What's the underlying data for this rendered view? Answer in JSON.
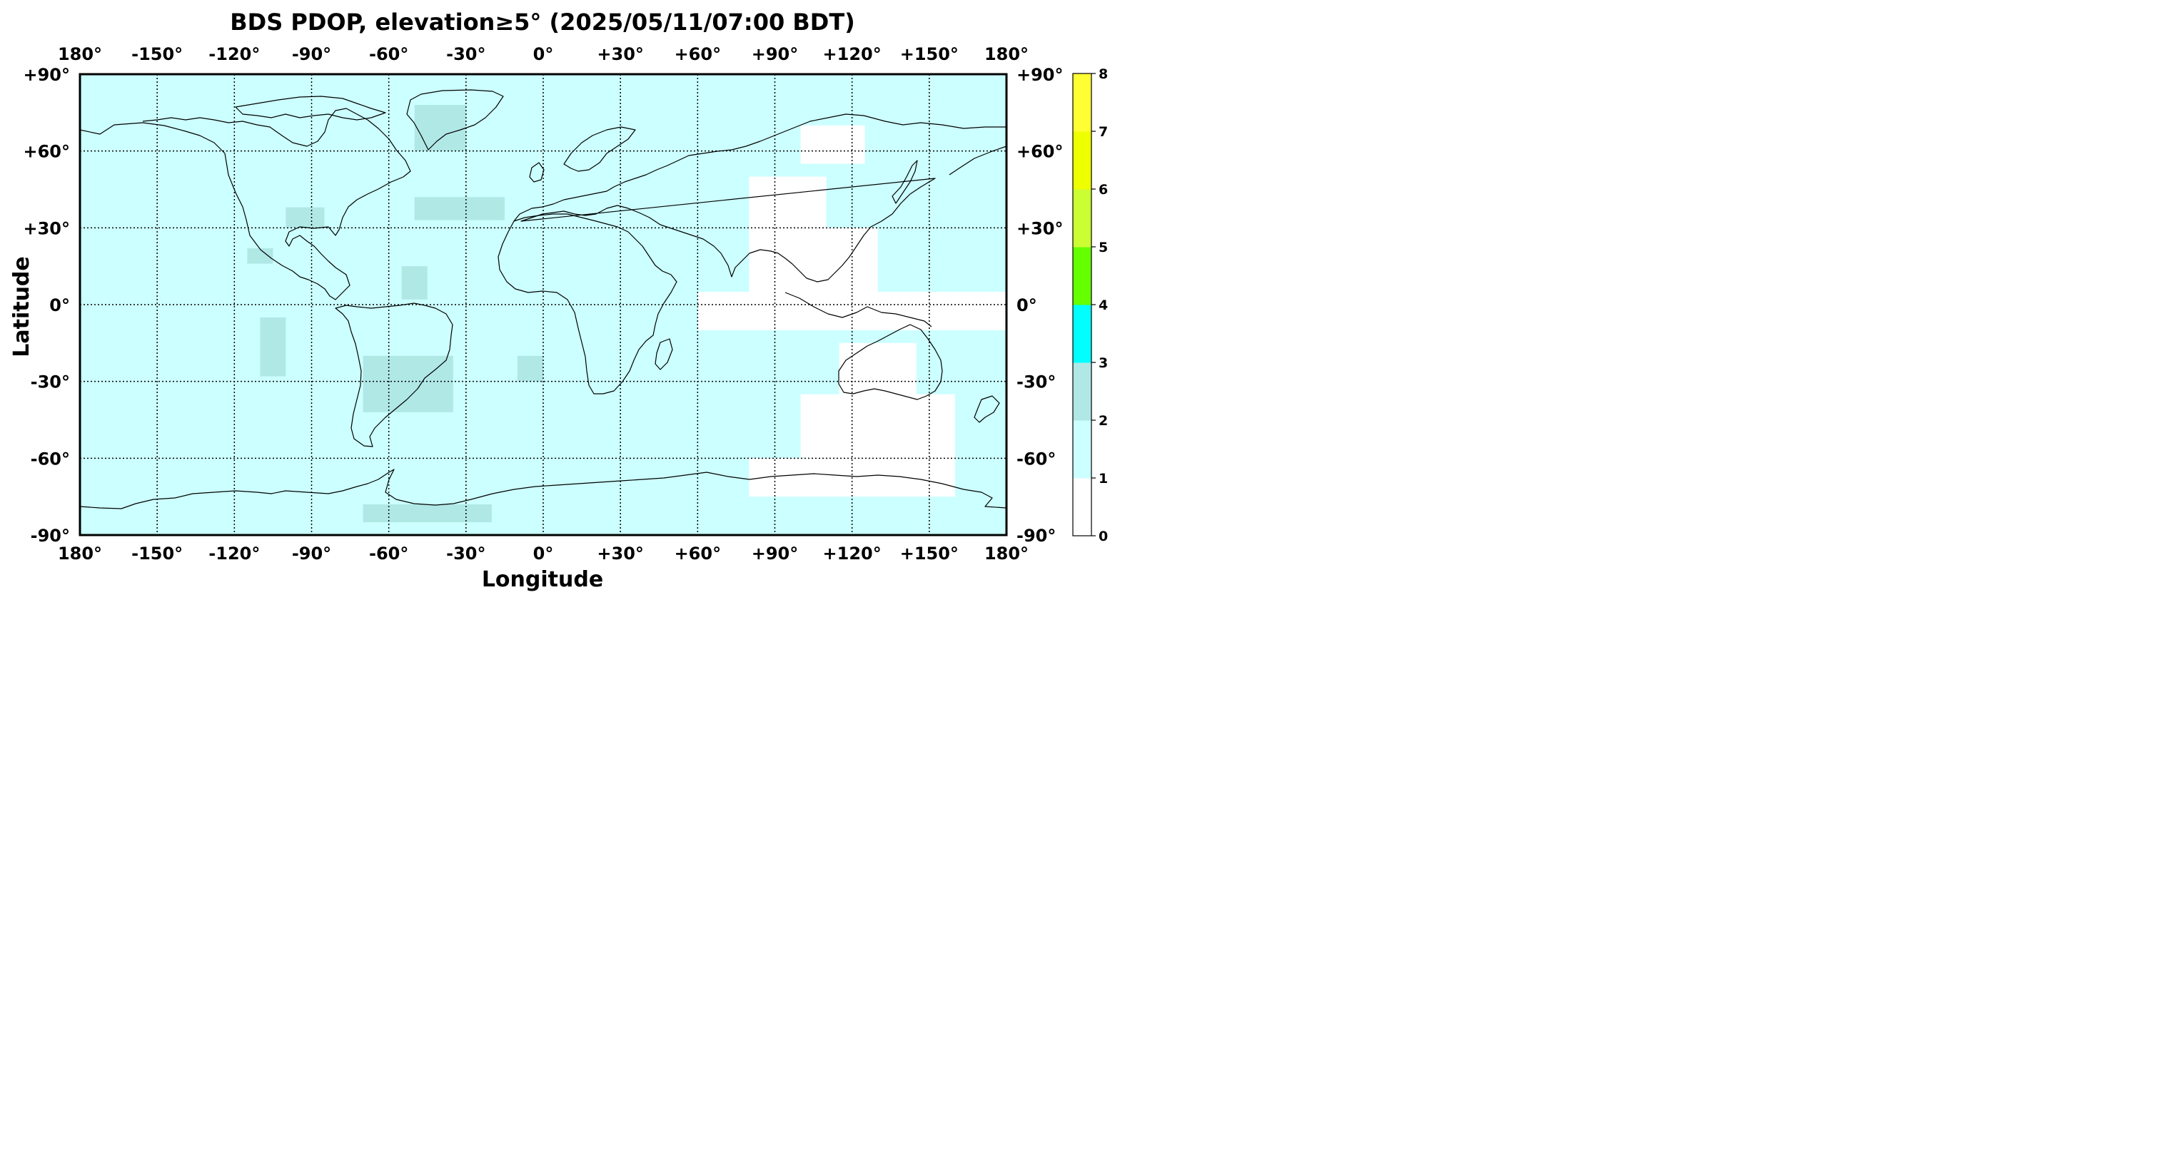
{
  "title": "BDS PDOP, elevation≥5° (2025/05/11/07:00 BDT)",
  "xlabel": "Longitude",
  "ylabel": "Latitude",
  "lon_ticks": [
    "180°",
    "-150°",
    "-120°",
    "-90°",
    "-60°",
    "-30°",
    "0°",
    "+30°",
    "+60°",
    "+90°",
    "+120°",
    "+150°",
    "180°"
  ],
  "lat_ticks": [
    "+90°",
    "+60°",
    "+30°",
    "0°",
    "-30°",
    "-60°",
    "-90°"
  ],
  "colorbar": {
    "ticks": [
      "0",
      "1",
      "2",
      "3",
      "4",
      "5",
      "6",
      "7",
      "8"
    ],
    "colors": [
      "#ffffff",
      "#ccffff",
      "#b0e8e6",
      "#00ffff",
      "#66ff00",
      "#ccff33",
      "#eeff00",
      "#ffff33"
    ]
  },
  "chart_data": {
    "type": "heatmap",
    "title": "BDS PDOP, elevation≥5° (2025/05/11/07:00 BDT)",
    "xlabel": "Longitude",
    "ylabel": "Latitude",
    "xlim": [
      -180,
      180
    ],
    "ylim": [
      -90,
      90
    ],
    "grid": true,
    "colorbar_range": [
      0,
      8
    ],
    "background_value_range": [
      1,
      2
    ],
    "regions_value_range_2_3": [
      {
        "name": "Greenland",
        "lon": [
          -50,
          -30
        ],
        "lat": [
          60,
          78
        ]
      },
      {
        "name": "North Atlantic",
        "lon": [
          -50,
          -15
        ],
        "lat": [
          33,
          42
        ]
      },
      {
        "name": "Gulf of Mexico",
        "lon": [
          -100,
          -85
        ],
        "lat": [
          30,
          38
        ]
      },
      {
        "name": "Mexico west coast",
        "lon": [
          -115,
          -105
        ],
        "lat": [
          16,
          22
        ]
      },
      {
        "name": "Central Pacific",
        "lon": [
          -110,
          -100
        ],
        "lat": [
          -28,
          -5
        ]
      },
      {
        "name": "Tropical Atlantic",
        "lon": [
          -55,
          -45
        ],
        "lat": [
          2,
          15
        ]
      },
      {
        "name": "South America",
        "lon": [
          -70,
          -35
        ],
        "lat": [
          -42,
          -20
        ]
      },
      {
        "name": "South Atlantic",
        "lon": [
          -10,
          0
        ],
        "lat": [
          -30,
          -20
        ]
      },
      {
        "name": "Antarctic coast",
        "lon": [
          -70,
          -20
        ],
        "lat": [
          -85,
          -78
        ]
      }
    ],
    "regions_value_range_0_1": [
      {
        "name": "Indian Ocean to Pacific",
        "lon": [
          60,
          180
        ],
        "lat": [
          -10,
          5
        ]
      },
      {
        "name": "Southeast Asia",
        "lon": [
          80,
          130
        ],
        "lat": [
          0,
          30
        ]
      },
      {
        "name": "China and Mongolia",
        "lon": [
          80,
          110
        ],
        "lat": [
          30,
          50
        ]
      },
      {
        "name": "Siberia",
        "lon": [
          100,
          125
        ],
        "lat": [
          55,
          70
        ]
      },
      {
        "name": "Australia",
        "lon": [
          115,
          145
        ],
        "lat": [
          -35,
          -15
        ]
      },
      {
        "name": "Southern Ocean",
        "lon": [
          100,
          160
        ],
        "lat": [
          -60,
          -35
        ]
      },
      {
        "name": "Antarctic Pacific",
        "lon": [
          80,
          160
        ],
        "lat": [
          -75,
          -60
        ]
      }
    ]
  }
}
